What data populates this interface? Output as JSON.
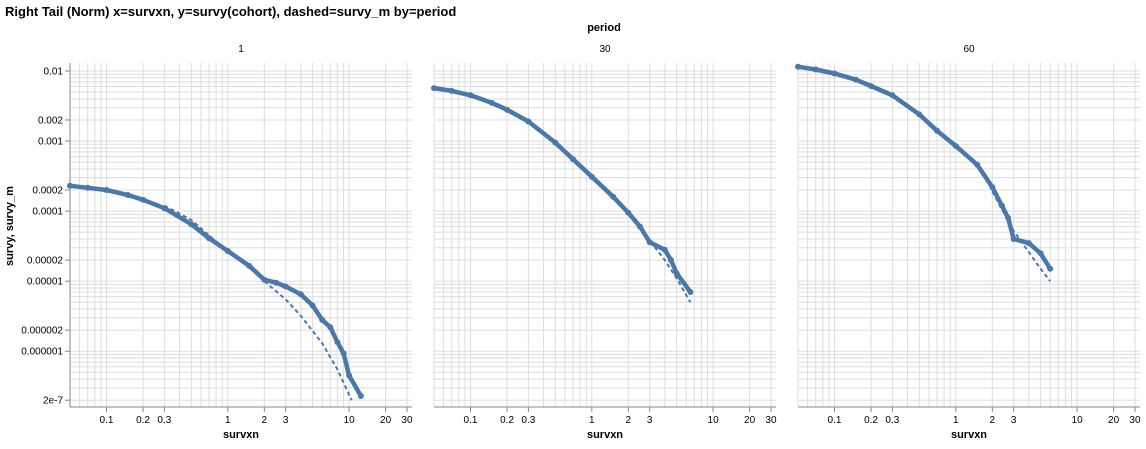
{
  "chart_data": {
    "type": "line",
    "title": "Right Tail (Norm) x=survxn, y=survy(cohort), dashed=survy_m by=period",
    "facet_header": "period",
    "xlabel": "survxn",
    "ylabel": "survy, survy_m",
    "xscale": "log",
    "yscale": "log",
    "xlim": [
      0.05,
      33
    ],
    "ylim": [
      1.6e-07,
      0.013
    ],
    "grid": true,
    "legend": "none",
    "colors": {
      "line": "#4c78a8",
      "grid": "#dddddd",
      "axis": "#888888"
    },
    "x_ticks": [
      {
        "value": 0.1,
        "label": "0.1"
      },
      {
        "value": 0.2,
        "label": "0.2"
      },
      {
        "value": 0.3,
        "label": "0.3"
      },
      {
        "value": 1,
        "label": "1"
      },
      {
        "value": 2,
        "label": "2"
      },
      {
        "value": 3,
        "label": "3"
      },
      {
        "value": 10,
        "label": "10"
      },
      {
        "value": 20,
        "label": "20"
      },
      {
        "value": 30,
        "label": "30"
      }
    ],
    "y_ticks": [
      {
        "value": 0.01,
        "label": "0.01"
      },
      {
        "value": 0.002,
        "label": "0.002"
      },
      {
        "value": 0.001,
        "label": "0.001"
      },
      {
        "value": 0.0002,
        "label": "0.0002"
      },
      {
        "value": 0.0001,
        "label": "0.0001"
      },
      {
        "value": 2e-05,
        "label": "0.00002"
      },
      {
        "value": 1e-05,
        "label": "0.00001"
      },
      {
        "value": 2e-06,
        "label": "0.000002"
      },
      {
        "value": 1e-06,
        "label": "0.000001"
      },
      {
        "value": 2e-07,
        "label": "2e-7"
      }
    ],
    "panels": [
      {
        "period": "1",
        "series": [
          {
            "style": "solid-points",
            "points": [
              [
                0.05,
                0.00023
              ],
              [
                0.07,
                0.000215
              ],
              [
                0.1,
                0.0002
              ],
              [
                0.15,
                0.00017
              ],
              [
                0.2,
                0.000145
              ],
              [
                0.3,
                0.00011
              ],
              [
                0.5,
                6.5e-05
              ],
              [
                0.7,
                4.1e-05
              ],
              [
                1,
                2.7e-05
              ],
              [
                1.5,
                1.65e-05
              ],
              [
                2,
                1.05e-05
              ],
              [
                2.5,
                9.5e-06
              ],
              [
                3,
                8.4e-06
              ],
              [
                4,
                6.5e-06
              ],
              [
                5,
                4.5e-06
              ],
              [
                6,
                2.8e-06
              ],
              [
                7,
                2.2e-06
              ],
              [
                8,
                1.35e-06
              ],
              [
                9,
                9.3e-07
              ],
              [
                10,
                4.5e-07
              ],
              [
                12.5,
                2.3e-07
              ]
            ]
          },
          {
            "style": "dashed",
            "points": [
              [
                0.3,
                0.00012
              ],
              [
                0.5,
                7.5e-05
              ],
              [
                0.7,
                4.5e-05
              ],
              [
                1,
                2.7e-05
              ],
              [
                1.5,
                1.6e-05
              ],
              [
                2,
                1e-05
              ],
              [
                3,
                5.5e-06
              ],
              [
                4,
                3.2e-06
              ],
              [
                6,
                1.3e-06
              ],
              [
                8,
                5.5e-07
              ],
              [
                10.5,
                2e-07
              ]
            ]
          }
        ]
      },
      {
        "period": "30",
        "series": [
          {
            "style": "solid-points",
            "points": [
              [
                0.05,
                0.0057
              ],
              [
                0.07,
                0.0052
              ],
              [
                0.1,
                0.0045
              ],
              [
                0.15,
                0.0035
              ],
              [
                0.2,
                0.0028
              ],
              [
                0.3,
                0.0019
              ],
              [
                0.5,
                0.00095
              ],
              [
                0.7,
                0.00055
              ],
              [
                1,
                0.00031
              ],
              [
                1.5,
                0.00016
              ],
              [
                2,
                9.5e-05
              ],
              [
                2.5,
                6e-05
              ],
              [
                3,
                3.6e-05
              ],
              [
                4,
                2.8e-05
              ],
              [
                4.5,
                2e-05
              ],
              [
                5,
                1.3e-05
              ],
              [
                6.5,
                7e-06
              ]
            ]
          },
          {
            "style": "dashed",
            "points": [
              [
                2,
                9e-05
              ],
              [
                3,
                3.8e-05
              ],
              [
                4,
                2e-05
              ],
              [
                5,
                1.1e-05
              ],
              [
                6.5,
                5e-06
              ]
            ]
          }
        ]
      },
      {
        "period": "60",
        "series": [
          {
            "style": "solid-points",
            "points": [
              [
                0.05,
                0.0115
              ],
              [
                0.07,
                0.0105
              ],
              [
                0.1,
                0.0092
              ],
              [
                0.15,
                0.0075
              ],
              [
                0.2,
                0.0061
              ],
              [
                0.3,
                0.0045
              ],
              [
                0.5,
                0.0024
              ],
              [
                0.7,
                0.0014
              ],
              [
                1,
                0.00085
              ],
              [
                1.5,
                0.00046
              ],
              [
                2,
                0.00022
              ],
              [
                2.4,
                0.00012
              ],
              [
                2.7,
                8e-05
              ],
              [
                3,
                4e-05
              ],
              [
                4,
                3.5e-05
              ],
              [
                5,
                2.5e-05
              ],
              [
                6,
                1.5e-05
              ]
            ]
          },
          {
            "style": "dashed",
            "points": [
              [
                2,
                0.00019
              ],
              [
                3,
                5.2e-05
              ],
              [
                4,
                2.6e-05
              ],
              [
                5,
                1.5e-05
              ],
              [
                6,
                1e-05
              ]
            ]
          }
        ]
      }
    ]
  }
}
